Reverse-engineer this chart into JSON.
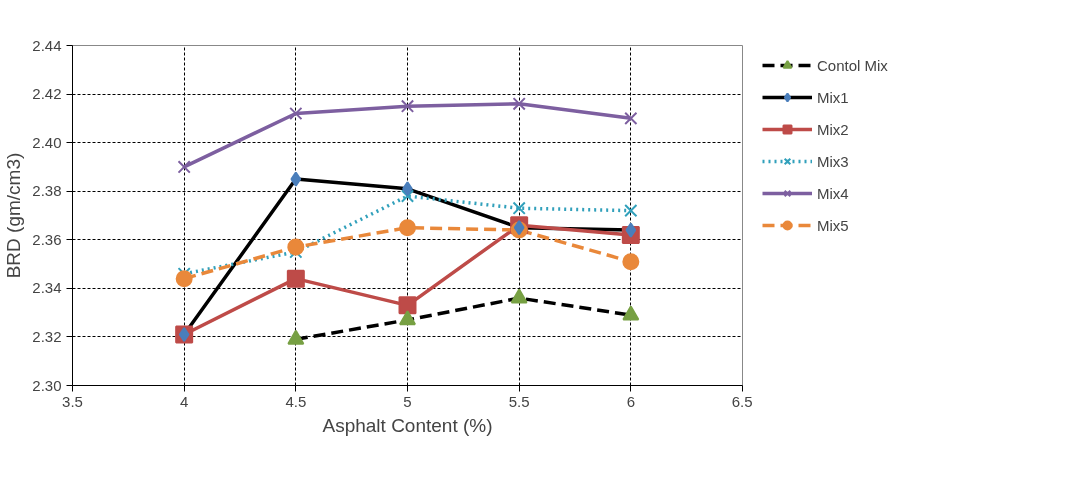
{
  "chart_data": {
    "type": "line",
    "xlabel": "Asphalt Content (%)",
    "ylabel": "BRD (gm/cm3)",
    "xlim": [
      3.5,
      6.5
    ],
    "xticks": [
      3.5,
      4,
      4.5,
      5,
      5.5,
      6,
      6.5
    ],
    "ylim": [
      2.3,
      2.44
    ],
    "yticks": [
      {
        "value": 2.3,
        "label": "2.30"
      },
      {
        "value": 2.32,
        "label": "2.32"
      },
      {
        "value": 2.34,
        "label": "2.34"
      },
      {
        "value": 2.36,
        "label": "2.36"
      },
      {
        "value": 2.38,
        "label": "2.38"
      },
      {
        "value": 2.4,
        "label": "2.40"
      },
      {
        "value": 2.42,
        "label": "2.42"
      },
      {
        "value": 2.44,
        "label": "2.44"
      }
    ],
    "grid": true,
    "legend": "right",
    "series": [
      {
        "name": "Contol Mix",
        "color": "#000000",
        "colors": [
          "#77a043",
          "#77a043",
          "#77a043",
          "#77a043"
        ],
        "marker": "triangle",
        "line_style": "dashed",
        "x": [
          4.5,
          5,
          5.5,
          6
        ],
        "values": [
          2.319,
          2.327,
          2.336,
          2.329
        ]
      },
      {
        "name": "Mix1",
        "color": "#000000",
        "colors": [
          "#4a7ebb",
          "#4a7ebb",
          "#4a7ebb",
          "#4a7ebb",
          "#4a7ebb"
        ],
        "marker": "diamond",
        "line_style": "solid",
        "x": [
          4,
          4.5,
          5,
          5.5,
          6
        ],
        "values": [
          2.321,
          2.385,
          2.381,
          2.365,
          2.364
        ]
      },
      {
        "name": "Mix2",
        "color": "#be4b48",
        "marker": "square",
        "line_style": "solid",
        "x": [
          4,
          4.5,
          5,
          5.5,
          6
        ],
        "values": [
          2.321,
          2.344,
          2.333,
          2.366,
          2.362
        ]
      },
      {
        "name": "Mix3",
        "color": "#31a0bb",
        "marker": "cross",
        "line_style": "dotted",
        "x": [
          4,
          4.5,
          5,
          5.5,
          6
        ],
        "values": [
          2.346,
          2.355,
          2.378,
          2.373,
          2.372
        ]
      },
      {
        "name": "Mix4",
        "color": "#7d5fa0",
        "marker": "cross",
        "line_style": "solid",
        "x": [
          4,
          4.5,
          5,
          5.5,
          6
        ],
        "values": [
          2.39,
          2.412,
          2.415,
          2.416,
          2.41
        ]
      },
      {
        "name": "Mix5",
        "color": "#e9883a",
        "marker": "circle",
        "line_style": "dashed",
        "x": [
          4,
          4.5,
          5,
          5.5,
          6
        ],
        "values": [
          2.344,
          2.357,
          2.365,
          2.364,
          2.351
        ]
      }
    ]
  }
}
